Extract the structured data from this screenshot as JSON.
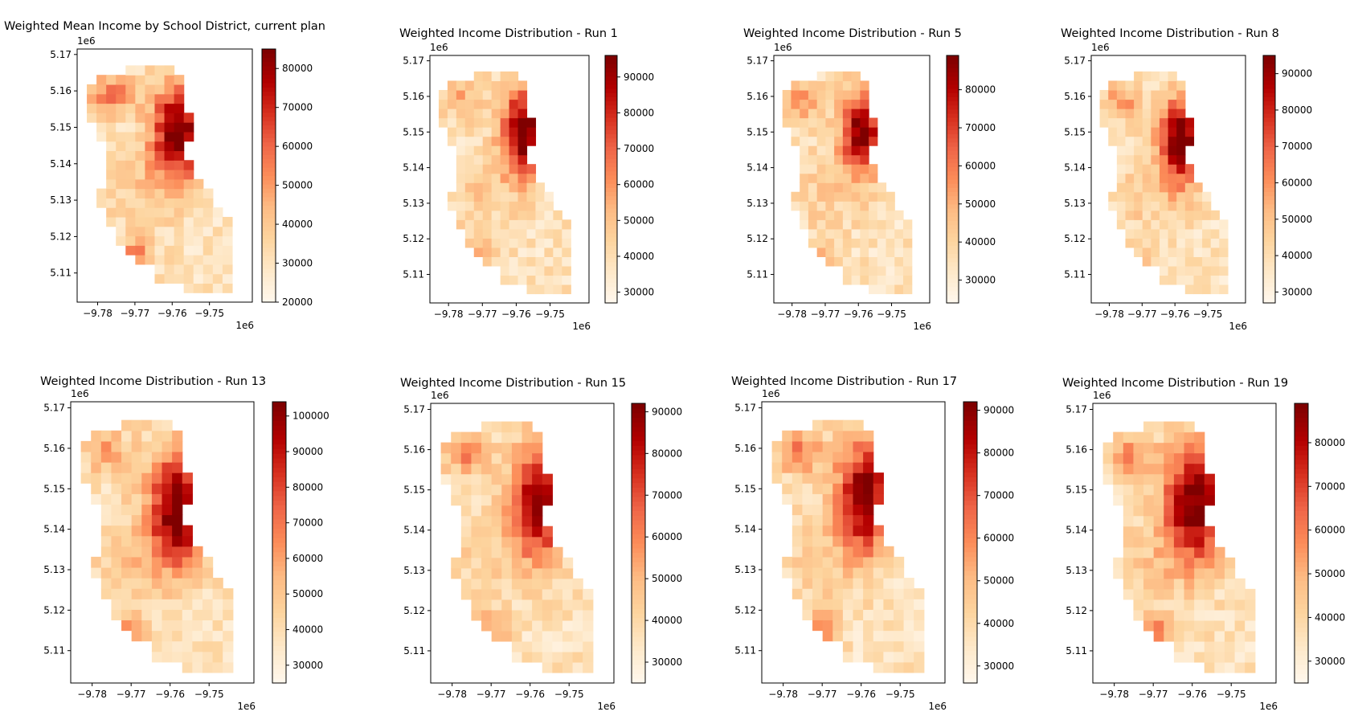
{
  "chart_data": [
    {
      "type": "choropleth",
      "title": "Weighted Mean Income by School District, current plan",
      "x_offset_label": "1e6",
      "y_offset_label": "1e6",
      "x_ticks": [
        "−9.78",
        "−9.77",
        "−9.76",
        "−9.75"
      ],
      "y_ticks": [
        "5.17",
        "5.16",
        "5.15",
        "5.14",
        "5.13",
        "5.12",
        "5.11"
      ],
      "colorbar": {
        "min": 20000,
        "max": 85000,
        "ticks": [
          "20000",
          "30000",
          "40000",
          "50000",
          "60000",
          "70000",
          "80000"
        ],
        "tick_values": [
          20000,
          30000,
          40000,
          50000,
          60000,
          70000,
          80000
        ],
        "colormap": "OrRd"
      }
    },
    {
      "type": "choropleth",
      "title": "Weighted Income Distribution - Run 1",
      "x_offset_label": "1e6",
      "y_offset_label": "1e6",
      "x_ticks": [
        "−9.78",
        "−9.77",
        "−9.76",
        "−9.75"
      ],
      "y_ticks": [
        "5.17",
        "5.16",
        "5.15",
        "5.14",
        "5.13",
        "5.12",
        "5.11"
      ],
      "colorbar": {
        "min": 27000,
        "max": 96000,
        "ticks": [
          "30000",
          "40000",
          "50000",
          "60000",
          "70000",
          "80000",
          "90000"
        ],
        "tick_values": [
          30000,
          40000,
          50000,
          60000,
          70000,
          80000,
          90000
        ],
        "colormap": "OrRd"
      }
    },
    {
      "type": "choropleth",
      "title": "Weighted Income Distribution - Run 5",
      "x_offset_label": "1e6",
      "y_offset_label": "1e6",
      "x_ticks": [
        "−9.78",
        "−9.77",
        "−9.76",
        "−9.75"
      ],
      "y_ticks": [
        "5.17",
        "5.16",
        "5.15",
        "5.14",
        "5.13",
        "5.12",
        "5.11"
      ],
      "colorbar": {
        "min": 24000,
        "max": 89000,
        "ticks": [
          "30000",
          "40000",
          "50000",
          "60000",
          "70000",
          "80000"
        ],
        "tick_values": [
          30000,
          40000,
          50000,
          60000,
          70000,
          80000
        ],
        "colormap": "OrRd"
      }
    },
    {
      "type": "choropleth",
      "title": "Weighted Income Distribution - Run 8",
      "x_offset_label": "1e6",
      "y_offset_label": "1e6",
      "x_ticks": [
        "−9.78",
        "−9.77",
        "−9.76",
        "−9.75"
      ],
      "y_ticks": [
        "5.17",
        "5.16",
        "5.15",
        "5.14",
        "5.13",
        "5.12",
        "5.11"
      ],
      "colorbar": {
        "min": 27000,
        "max": 95000,
        "ticks": [
          "30000",
          "40000",
          "50000",
          "60000",
          "70000",
          "80000",
          "90000"
        ],
        "tick_values": [
          30000,
          40000,
          50000,
          60000,
          70000,
          80000,
          90000
        ],
        "colormap": "OrRd"
      }
    },
    {
      "type": "choropleth",
      "title": "Weighted Income Distribution - Run 13",
      "x_offset_label": "1e6",
      "y_offset_label": "1e6",
      "x_ticks": [
        "−9.78",
        "−9.77",
        "−9.76",
        "−9.75"
      ],
      "y_ticks": [
        "5.17",
        "5.16",
        "5.15",
        "5.14",
        "5.13",
        "5.12",
        "5.11"
      ],
      "colorbar": {
        "min": 25000,
        "max": 104000,
        "ticks": [
          "30000",
          "40000",
          "50000",
          "60000",
          "70000",
          "80000",
          "90000",
          "100000"
        ],
        "tick_values": [
          30000,
          40000,
          50000,
          60000,
          70000,
          80000,
          90000,
          100000
        ],
        "colormap": "OrRd"
      }
    },
    {
      "type": "choropleth",
      "title": "Weighted Income Distribution - Run 15",
      "x_offset_label": "1e6",
      "y_offset_label": "1e6",
      "x_ticks": [
        "−9.78",
        "−9.77",
        "−9.76",
        "−9.75"
      ],
      "y_ticks": [
        "5.17",
        "5.16",
        "5.15",
        "5.14",
        "5.13",
        "5.12",
        "5.11"
      ],
      "colorbar": {
        "min": 25000,
        "max": 92000,
        "ticks": [
          "30000",
          "40000",
          "50000",
          "60000",
          "70000",
          "80000",
          "90000"
        ],
        "tick_values": [
          30000,
          40000,
          50000,
          60000,
          70000,
          80000,
          90000
        ],
        "colormap": "OrRd"
      }
    },
    {
      "type": "choropleth",
      "title": "Weighted Income Distribution - Run 17",
      "x_offset_label": "1e6",
      "y_offset_label": "1e6",
      "x_ticks": [
        "−9.78",
        "−9.77",
        "−9.76",
        "−9.75"
      ],
      "y_ticks": [
        "5.17",
        "5.16",
        "5.15",
        "5.14",
        "5.13",
        "5.12",
        "5.11"
      ],
      "colorbar": {
        "min": 26000,
        "max": 92000,
        "ticks": [
          "30000",
          "40000",
          "50000",
          "60000",
          "70000",
          "80000",
          "90000"
        ],
        "tick_values": [
          30000,
          40000,
          50000,
          60000,
          70000,
          80000,
          90000
        ],
        "colormap": "OrRd"
      }
    },
    {
      "type": "choropleth",
      "title": "Weighted Income Distribution - Run 19",
      "x_offset_label": "1e6",
      "y_offset_label": "1e6",
      "x_ticks": [
        "−9.78",
        "−9.77",
        "−9.76",
        "−9.75"
      ],
      "y_ticks": [
        "5.17",
        "5.16",
        "5.15",
        "5.14",
        "5.13",
        "5.12",
        "5.11"
      ],
      "colorbar": {
        "min": 25000,
        "max": 89000,
        "ticks": [
          "30000",
          "40000",
          "50000",
          "60000",
          "70000",
          "80000"
        ],
        "tick_values": [
          30000,
          40000,
          50000,
          60000,
          70000,
          80000
        ],
        "colormap": "OrRd"
      }
    }
  ]
}
